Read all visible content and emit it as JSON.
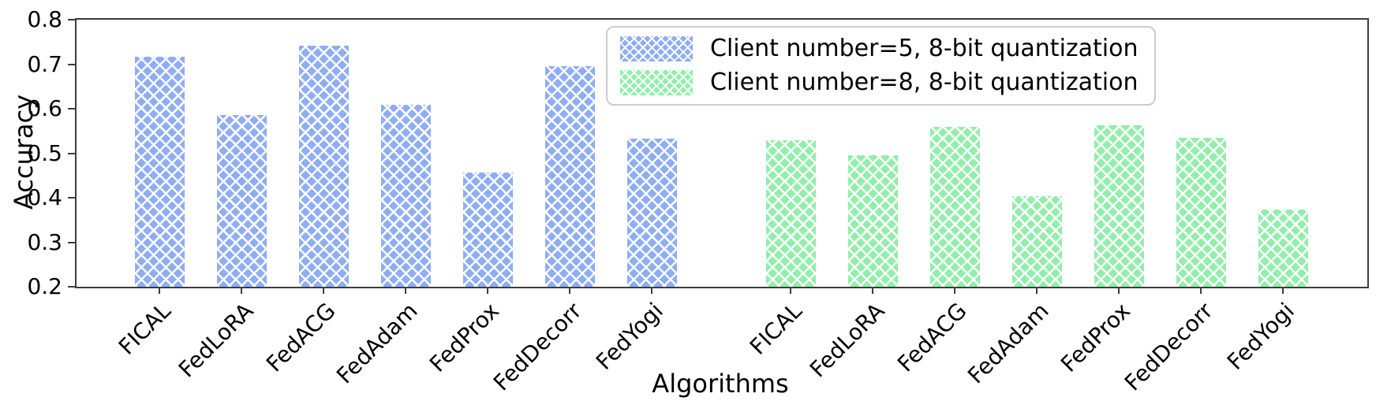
{
  "chart_data": {
    "type": "bar",
    "title": "",
    "xlabel": "Algorithms",
    "ylabel": "Accuracy",
    "ylim": [
      0.2,
      0.8
    ],
    "yticks": [
      0.2,
      0.3,
      0.4,
      0.5,
      0.6,
      0.7,
      0.8
    ],
    "grid": false,
    "legend_position": "upper right",
    "hatch": "xx",
    "categories": [
      "FICAL",
      "FedLoRA",
      "FedACG",
      "FedAdam",
      "FedProx",
      "FedDecorr",
      "FedYogi"
    ],
    "series": [
      {
        "name": "Client number=5, 8-bit quantization",
        "color": "#8fadf3",
        "hatch_color": "#ffffff",
        "values": [
          0.716,
          0.586,
          0.741,
          0.609,
          0.456,
          0.696,
          0.532
        ]
      },
      {
        "name": "Client number=8, 8-bit quantization",
        "color": "#92eeab",
        "hatch_color": "#ffffff",
        "values": [
          0.529,
          0.496,
          0.56,
          0.403,
          0.563,
          0.534,
          0.373
        ]
      }
    ]
  }
}
